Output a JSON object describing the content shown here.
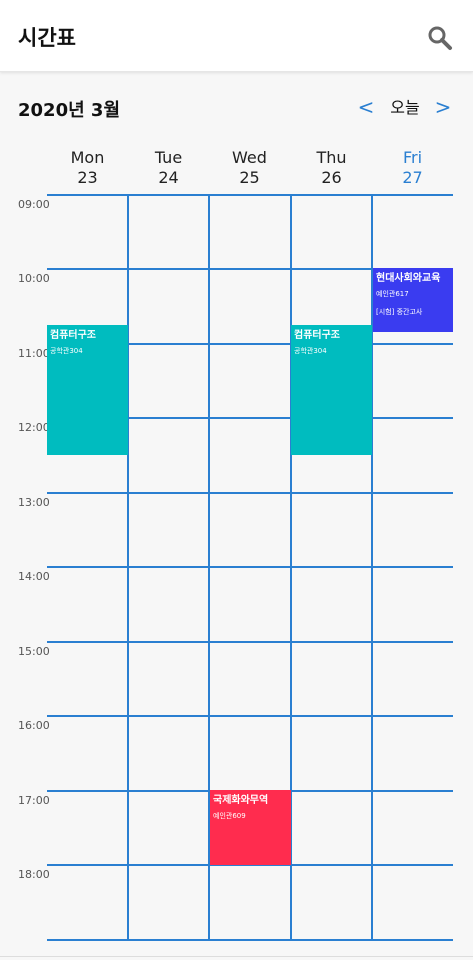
{
  "app": {
    "title": "시간표"
  },
  "header": {
    "month_title": "2020년 3월",
    "prev_label": "<",
    "today_label": "오늘",
    "next_label": ">"
  },
  "days": [
    {
      "name": "Mon",
      "date": "23",
      "today": false
    },
    {
      "name": "Tue",
      "date": "24",
      "today": false
    },
    {
      "name": "Wed",
      "date": "25",
      "today": false
    },
    {
      "name": "Thu",
      "date": "26",
      "today": false
    },
    {
      "name": "Fri",
      "date": "27",
      "today": true
    }
  ],
  "times": [
    "09:00",
    "10:00",
    "11:00",
    "12:00",
    "13:00",
    "14:00",
    "15:00",
    "16:00",
    "17:00",
    "18:00"
  ],
  "events": [
    {
      "title": "컴퓨터구조",
      "room": "공학관304",
      "note": "",
      "day": "Mon",
      "start": "10:45",
      "end": "12:30",
      "color": "#00bcbf"
    },
    {
      "title": "컴퓨터구조",
      "room": "공학관304",
      "note": "",
      "day": "Thu",
      "start": "10:45",
      "end": "12:30",
      "color": "#00bcbf"
    },
    {
      "title": "현대사회와교육",
      "room": "예인관617",
      "note": "[시험] 중간고사",
      "day": "Fri",
      "start": "10:00",
      "end": "10:50",
      "color": "#3a3cf0"
    },
    {
      "title": "국제화와무역",
      "room": "예인관609",
      "note": "",
      "day": "Wed",
      "start": "17:00",
      "end": "18:00",
      "color": "#ff2c4e"
    }
  ],
  "colors": {
    "accent": "#2a7fd1",
    "grid_line": "#2a7fd1",
    "background": "#f7f7f7"
  },
  "icons": {
    "search": "search-icon"
  }
}
